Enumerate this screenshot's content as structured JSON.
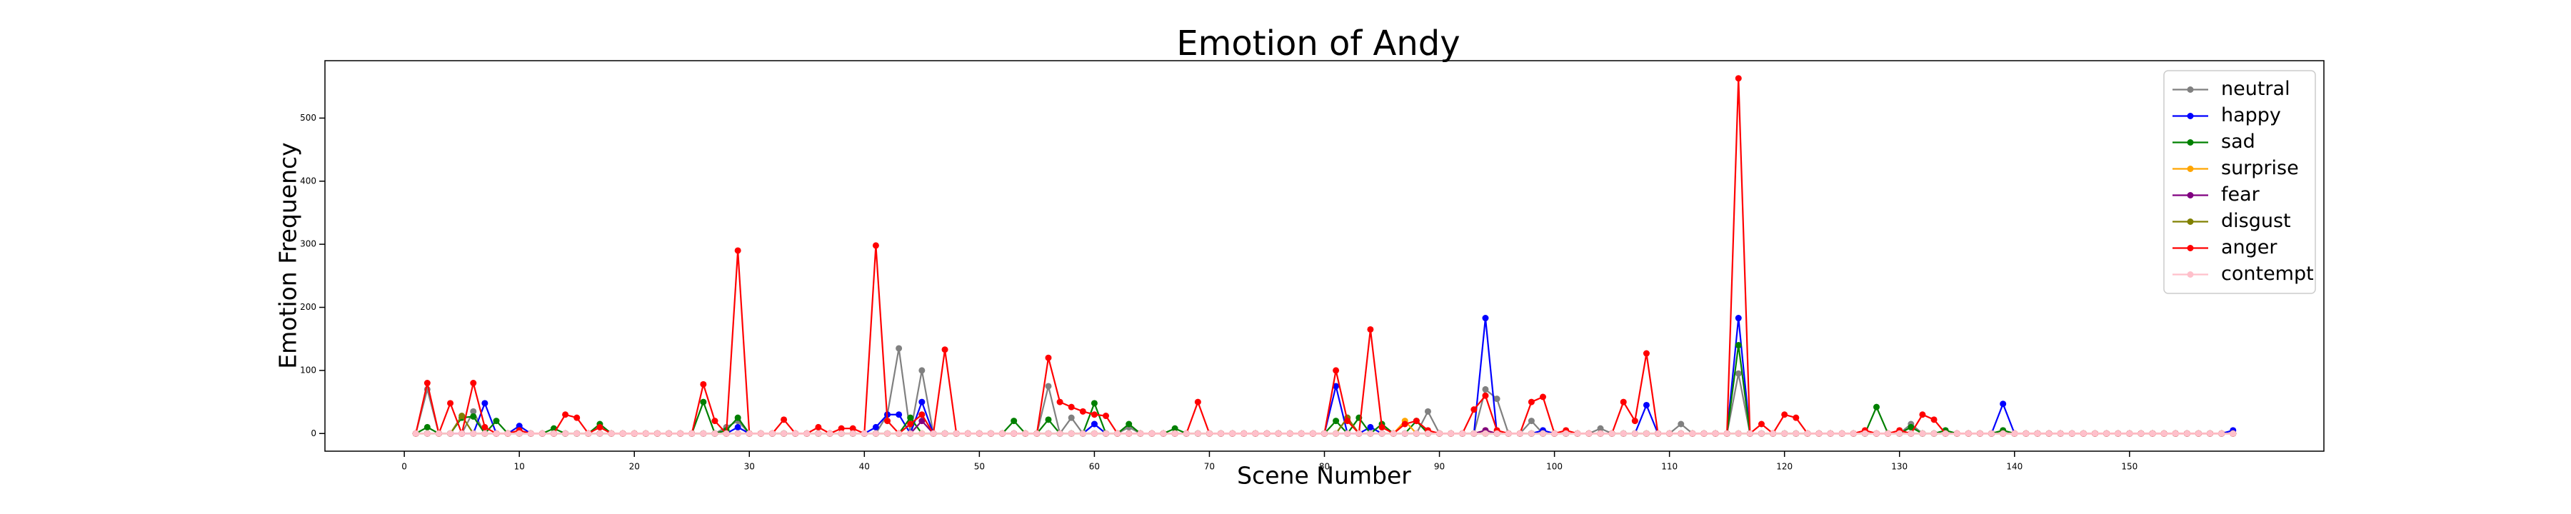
{
  "chart_data": {
    "type": "line",
    "title": "Emotion of Andy",
    "xlabel": "Scene Number",
    "ylabel": "Emotion Frequency",
    "x": [
      1,
      2,
      3,
      4,
      5,
      6,
      7,
      8,
      9,
      10,
      11,
      12,
      13,
      14,
      15,
      16,
      17,
      18,
      19,
      20,
      21,
      22,
      23,
      24,
      25,
      26,
      27,
      28,
      29,
      30,
      31,
      32,
      33,
      34,
      35,
      36,
      37,
      38,
      39,
      40,
      41,
      42,
      43,
      44,
      45,
      46,
      47,
      48,
      49,
      50,
      51,
      52,
      53,
      54,
      55,
      56,
      57,
      58,
      59,
      60,
      61,
      62,
      63,
      64,
      65,
      66,
      67,
      68,
      69,
      70,
      71,
      72,
      73,
      74,
      75,
      76,
      77,
      78,
      79,
      80,
      81,
      82,
      83,
      84,
      85,
      86,
      87,
      88,
      89,
      90,
      91,
      92,
      93,
      94,
      95,
      96,
      97,
      98,
      99,
      100,
      101,
      102,
      103,
      104,
      105,
      106,
      107,
      108,
      109,
      110,
      111,
      112,
      113,
      114,
      115,
      116,
      117,
      118,
      119,
      120,
      121,
      122,
      123,
      124,
      125,
      126,
      127,
      128,
      129,
      130,
      131,
      132,
      133,
      134,
      135,
      136,
      137,
      138,
      139,
      140,
      141,
      142,
      143,
      144,
      145,
      146,
      147,
      148,
      149,
      150,
      151,
      152,
      153,
      154,
      155,
      156,
      157,
      158,
      159
    ],
    "series": [
      {
        "name": "neutral",
        "color": "#808080",
        "values": [
          0,
          70,
          0,
          0,
          0,
          35,
          0,
          0,
          0,
          0,
          0,
          0,
          0,
          0,
          0,
          0,
          0,
          0,
          0,
          0,
          0,
          0,
          0,
          0,
          0,
          0,
          0,
          10,
          20,
          0,
          0,
          0,
          0,
          0,
          0,
          0,
          0,
          0,
          0,
          0,
          0,
          30,
          135,
          0,
          100,
          0,
          0,
          0,
          0,
          0,
          0,
          0,
          0,
          0,
          0,
          75,
          0,
          25,
          0,
          15,
          0,
          0,
          10,
          0,
          0,
          0,
          0,
          0,
          0,
          0,
          0,
          0,
          0,
          0,
          0,
          0,
          0,
          0,
          0,
          0,
          0,
          25,
          0,
          0,
          0,
          0,
          0,
          0,
          35,
          0,
          0,
          0,
          0,
          70,
          55,
          0,
          0,
          20,
          0,
          0,
          0,
          0,
          0,
          8,
          0,
          0,
          0,
          0,
          0,
          0,
          15,
          0,
          0,
          0,
          0,
          95,
          0,
          0,
          0,
          0,
          0,
          0,
          0,
          0,
          0,
          0,
          0,
          0,
          0,
          0,
          15,
          0,
          0,
          0,
          0,
          0,
          0,
          0,
          5,
          0,
          0,
          0,
          0,
          0,
          0,
          0,
          0,
          0,
          0,
          0,
          0,
          0,
          0,
          0,
          0,
          0,
          0,
          0,
          0
        ]
      },
      {
        "name": "happy",
        "color": "#0000ff",
        "values": [
          0,
          0,
          0,
          0,
          0,
          0,
          48,
          0,
          0,
          12,
          0,
          0,
          0,
          0,
          0,
          0,
          0,
          0,
          0,
          0,
          0,
          0,
          0,
          0,
          0,
          0,
          0,
          0,
          10,
          0,
          0,
          0,
          0,
          0,
          0,
          0,
          0,
          0,
          0,
          0,
          10,
          30,
          30,
          0,
          50,
          0,
          0,
          0,
          0,
          0,
          0,
          0,
          0,
          0,
          0,
          0,
          0,
          0,
          0,
          15,
          0,
          0,
          0,
          0,
          0,
          0,
          0,
          0,
          0,
          0,
          0,
          0,
          0,
          0,
          0,
          0,
          0,
          0,
          0,
          0,
          75,
          0,
          0,
          10,
          0,
          0,
          0,
          0,
          0,
          0,
          0,
          0,
          0,
          183,
          0,
          0,
          0,
          0,
          5,
          0,
          0,
          0,
          0,
          0,
          0,
          0,
          0,
          45,
          0,
          0,
          0,
          0,
          0,
          0,
          0,
          183,
          0,
          0,
          0,
          0,
          0,
          0,
          0,
          0,
          0,
          0,
          0,
          0,
          0,
          0,
          0,
          0,
          0,
          0,
          0,
          0,
          0,
          0,
          47,
          0,
          0,
          0,
          0,
          0,
          0,
          0,
          0,
          0,
          0,
          0,
          0,
          0,
          0,
          0,
          0,
          0,
          0,
          0,
          5
        ]
      },
      {
        "name": "sad",
        "color": "#008000",
        "values": [
          0,
          10,
          0,
          0,
          25,
          27,
          0,
          20,
          0,
          0,
          0,
          0,
          8,
          0,
          0,
          0,
          15,
          0,
          0,
          0,
          0,
          0,
          0,
          0,
          0,
          50,
          0,
          5,
          25,
          0,
          0,
          0,
          0,
          0,
          0,
          0,
          0,
          0,
          0,
          0,
          0,
          0,
          0,
          25,
          0,
          0,
          0,
          0,
          0,
          0,
          0,
          0,
          20,
          0,
          0,
          22,
          0,
          0,
          0,
          48,
          0,
          0,
          15,
          0,
          0,
          0,
          8,
          0,
          0,
          0,
          0,
          0,
          0,
          0,
          0,
          0,
          0,
          0,
          0,
          0,
          20,
          0,
          25,
          0,
          15,
          0,
          0,
          20,
          0,
          0,
          0,
          0,
          0,
          0,
          0,
          0,
          0,
          0,
          0,
          0,
          0,
          0,
          0,
          0,
          0,
          0,
          0,
          0,
          0,
          0,
          0,
          0,
          0,
          0,
          0,
          140,
          0,
          0,
          0,
          0,
          0,
          0,
          0,
          0,
          0,
          0,
          0,
          42,
          0,
          0,
          10,
          0,
          0,
          5,
          0,
          0,
          0,
          0,
          5,
          0,
          0,
          0,
          0,
          0,
          0,
          0,
          0,
          0,
          0,
          0,
          0,
          0,
          0,
          0,
          0,
          0,
          0,
          0,
          0
        ]
      },
      {
        "name": "surprise",
        "color": "#ffa500",
        "values": [
          0,
          0,
          0,
          0,
          0,
          0,
          0,
          0,
          0,
          0,
          0,
          0,
          0,
          0,
          0,
          0,
          0,
          0,
          0,
          0,
          0,
          0,
          0,
          0,
          0,
          0,
          0,
          0,
          0,
          0,
          0,
          0,
          0,
          0,
          0,
          0,
          0,
          0,
          0,
          0,
          0,
          0,
          0,
          0,
          0,
          0,
          0,
          0,
          0,
          0,
          0,
          0,
          0,
          0,
          0,
          0,
          0,
          0,
          0,
          0,
          0,
          0,
          0,
          0,
          0,
          0,
          0,
          0,
          0,
          0,
          0,
          0,
          0,
          0,
          0,
          0,
          0,
          0,
          0,
          0,
          0,
          0,
          0,
          0,
          0,
          0,
          20,
          0,
          0,
          0,
          0,
          0,
          0,
          5,
          0,
          0,
          0,
          0,
          0,
          0,
          0,
          0,
          0,
          0,
          0,
          0,
          0,
          0,
          0,
          0,
          0,
          0,
          0,
          0,
          0,
          0,
          0,
          0,
          0,
          0,
          0,
          0,
          0,
          0,
          0,
          0,
          0,
          0,
          0,
          0,
          0,
          0,
          0,
          0,
          0,
          0,
          0,
          0,
          0,
          0,
          0,
          0,
          0,
          0,
          0,
          0,
          0,
          0,
          0,
          0,
          0,
          0,
          0,
          0,
          0,
          0,
          0,
          0,
          0
        ]
      },
      {
        "name": "fear",
        "color": "#800080",
        "values": [
          0,
          0,
          0,
          0,
          0,
          0,
          0,
          0,
          0,
          0,
          0,
          0,
          0,
          0,
          0,
          0,
          0,
          0,
          0,
          0,
          0,
          0,
          0,
          0,
          0,
          0,
          0,
          0,
          0,
          0,
          0,
          0,
          0,
          0,
          0,
          0,
          0,
          0,
          0,
          0,
          0,
          0,
          0,
          0,
          20,
          0,
          0,
          0,
          0,
          0,
          0,
          0,
          0,
          0,
          0,
          0,
          0,
          0,
          0,
          0,
          0,
          0,
          0,
          0,
          0,
          0,
          0,
          0,
          0,
          0,
          0,
          0,
          0,
          0,
          0,
          0,
          0,
          0,
          0,
          0,
          0,
          0,
          0,
          0,
          0,
          0,
          0,
          0,
          0,
          0,
          0,
          0,
          0,
          5,
          0,
          0,
          0,
          0,
          0,
          0,
          0,
          0,
          0,
          0,
          0,
          0,
          0,
          0,
          0,
          0,
          0,
          0,
          0,
          0,
          0,
          0,
          0,
          0,
          0,
          0,
          0,
          0,
          0,
          0,
          0,
          0,
          0,
          0,
          0,
          0,
          0,
          0,
          0,
          0,
          0,
          0,
          0,
          0,
          0,
          0,
          0,
          0,
          0,
          0,
          0,
          0,
          0,
          0,
          0,
          0,
          0,
          0,
          0,
          0,
          0,
          0,
          0,
          0,
          0
        ]
      },
      {
        "name": "disgust",
        "color": "#808000",
        "values": [
          0,
          0,
          0,
          0,
          28,
          0,
          0,
          0,
          0,
          0,
          0,
          0,
          0,
          0,
          0,
          0,
          0,
          0,
          0,
          0,
          0,
          0,
          0,
          0,
          0,
          0,
          0,
          0,
          0,
          0,
          0,
          0,
          0,
          0,
          0,
          0,
          0,
          0,
          0,
          0,
          0,
          0,
          0,
          0,
          0,
          0,
          0,
          0,
          0,
          0,
          0,
          0,
          0,
          0,
          0,
          0,
          0,
          0,
          0,
          0,
          0,
          0,
          0,
          0,
          0,
          0,
          0,
          0,
          0,
          0,
          0,
          0,
          0,
          0,
          0,
          0,
          0,
          0,
          0,
          0,
          0,
          25,
          0,
          0,
          0,
          0,
          0,
          0,
          0,
          0,
          0,
          0,
          0,
          0,
          0,
          0,
          0,
          0,
          0,
          0,
          0,
          0,
          0,
          0,
          0,
          0,
          0,
          0,
          0,
          0,
          0,
          0,
          0,
          0,
          0,
          0,
          0,
          0,
          0,
          0,
          0,
          0,
          0,
          0,
          0,
          0,
          0,
          0,
          0,
          0,
          0,
          0,
          0,
          0,
          0,
          0,
          0,
          0,
          0,
          0,
          0,
          0,
          0,
          0,
          0,
          0,
          0,
          0,
          0,
          0,
          0,
          0,
          0,
          0,
          0,
          0,
          0,
          0,
          0
        ]
      },
      {
        "name": "anger",
        "color": "#ff0000",
        "values": [
          0,
          80,
          0,
          48,
          0,
          80,
          10,
          0,
          0,
          5,
          0,
          0,
          0,
          30,
          25,
          0,
          10,
          0,
          0,
          0,
          0,
          0,
          0,
          0,
          0,
          78,
          20,
          0,
          290,
          0,
          0,
          0,
          22,
          0,
          0,
          10,
          0,
          8,
          8,
          0,
          298,
          20,
          0,
          15,
          30,
          0,
          133,
          0,
          0,
          0,
          0,
          0,
          0,
          0,
          0,
          120,
          50,
          42,
          35,
          30,
          28,
          0,
          0,
          0,
          0,
          0,
          0,
          0,
          50,
          0,
          0,
          0,
          0,
          0,
          0,
          0,
          0,
          0,
          0,
          0,
          100,
          20,
          0,
          165,
          10,
          0,
          15,
          20,
          5,
          0,
          0,
          0,
          38,
          60,
          5,
          0,
          0,
          50,
          58,
          0,
          5,
          0,
          0,
          0,
          0,
          50,
          20,
          127,
          0,
          0,
          0,
          0,
          0,
          0,
          0,
          563,
          0,
          15,
          0,
          30,
          25,
          0,
          0,
          0,
          0,
          0,
          5,
          0,
          0,
          5,
          0,
          30,
          22,
          0,
          0,
          0,
          0,
          0,
          0,
          0,
          0,
          0,
          0,
          0,
          0,
          0,
          0,
          0,
          0,
          0,
          0,
          0,
          0,
          0,
          0,
          0,
          0,
          0,
          0
        ]
      },
      {
        "name": "contempt",
        "color": "#ffc0cb",
        "values": [
          0,
          0,
          0,
          0,
          0,
          0,
          0,
          0,
          0,
          0,
          0,
          0,
          0,
          0,
          0,
          0,
          0,
          0,
          0,
          0,
          0,
          0,
          0,
          0,
          0,
          0,
          0,
          0,
          0,
          0,
          0,
          0,
          0,
          0,
          0,
          0,
          0,
          0,
          0,
          0,
          0,
          0,
          0,
          0,
          0,
          0,
          0,
          0,
          0,
          0,
          0,
          0,
          0,
          0,
          0,
          0,
          0,
          0,
          0,
          0,
          0,
          0,
          0,
          0,
          0,
          0,
          0,
          0,
          0,
          0,
          0,
          0,
          0,
          0,
          0,
          0,
          0,
          0,
          0,
          0,
          0,
          0,
          0,
          0,
          0,
          0,
          0,
          0,
          0,
          0,
          0,
          0,
          0,
          0,
          0,
          0,
          0,
          0,
          0,
          0,
          0,
          0,
          0,
          0,
          0,
          0,
          0,
          0,
          0,
          0,
          0,
          0,
          0,
          0,
          0,
          0,
          0,
          0,
          0,
          0,
          0,
          0,
          0,
          0,
          0,
          0,
          0,
          0,
          0,
          0,
          0,
          0,
          0,
          0,
          0,
          0,
          0,
          0,
          0,
          0,
          0,
          0,
          0,
          0,
          0,
          0,
          0,
          0,
          0,
          0,
          0,
          0,
          0,
          0,
          0,
          0,
          0,
          0,
          0
        ]
      }
    ],
    "xlim": [
      -6.9,
      166.9
    ],
    "xticks": [
      0,
      10,
      20,
      30,
      40,
      50,
      60,
      70,
      80,
      90,
      100,
      110,
      120,
      130,
      140,
      150
    ],
    "ylim": [
      -28,
      591
    ],
    "yticks": [
      0,
      100,
      200,
      300,
      400,
      500
    ],
    "legend": "upper right"
  }
}
